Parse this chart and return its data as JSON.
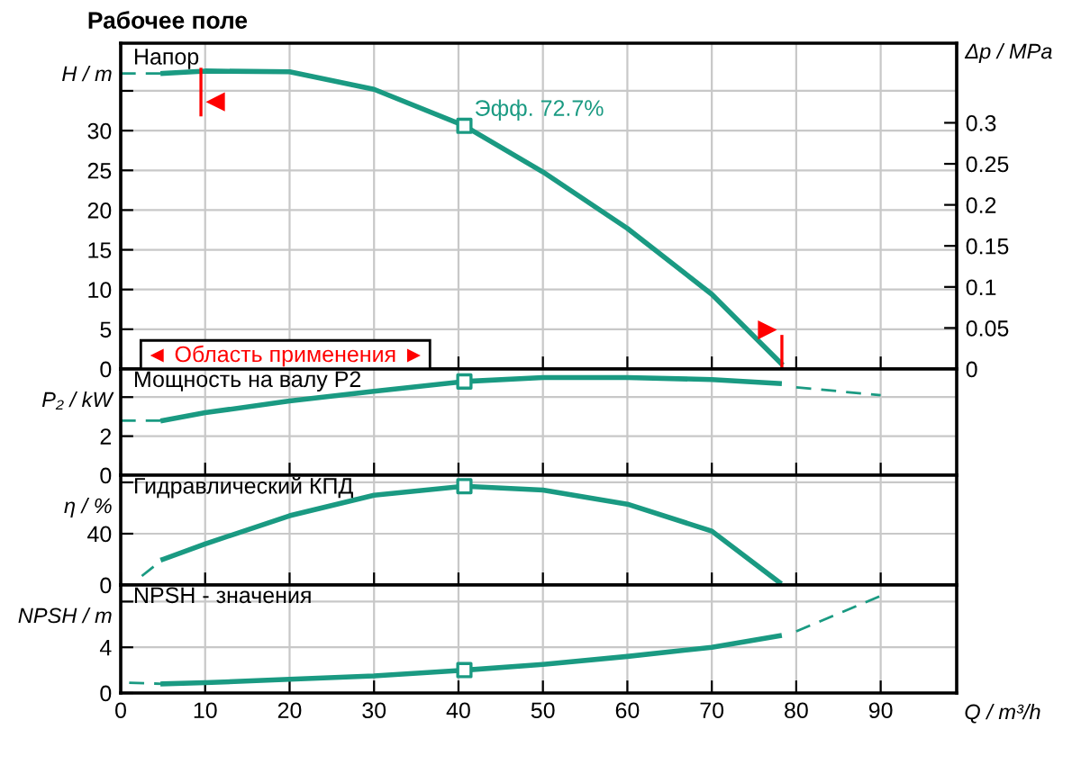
{
  "chart_data": [
    {
      "type": "line",
      "title": "Рабочее поле",
      "ylabel": "H / m",
      "y2label": "Δp / MPa",
      "xlim": [
        0,
        99
      ],
      "ylim": [
        0,
        41
      ],
      "yticks": [
        0,
        5,
        10,
        15,
        20,
        25,
        30,
        {
          "value": 35,
          "label": null
        }
      ],
      "y2lim": [
        0,
        0.397
      ],
      "y2ticks": [
        0,
        0.05,
        0.1,
        0.15,
        0.2,
        0.25,
        0.3
      ],
      "xticks": [
        0,
        10,
        20,
        30,
        40,
        50,
        60,
        70,
        80,
        90
      ],
      "tick_labels": "y",
      "grid": true,
      "annotations": [
        "Напор",
        {
          "text": "Эфф. 72.7%",
          "x": 40.7,
          "y": 30.6
        },
        "◄ Область применения ►"
      ],
      "ref_lines": [
        {
          "axis": "x",
          "value": 9.5,
          "color": "#ff0000"
        },
        {
          "axis": "x",
          "value": 78.3,
          "color": "#ff0000"
        }
      ],
      "series": [
        {
          "color": "#1a9a82",
          "line_style": "dashed",
          "x": [
            0,
            5
          ],
          "values": [
            37.2,
            37.2
          ]
        },
        {
          "color": "#1a9a82",
          "line_style": "solid",
          "x": [
            5,
            10,
            20,
            30,
            40.7,
            50,
            60,
            70,
            78.2
          ],
          "values": [
            37.2,
            37.5,
            37.4,
            35.2,
            30.6,
            24.8,
            17.7,
            9.4,
            0.7
          ]
        },
        {
          "type": "scatter",
          "color": "#1a9a82",
          "marker": "square",
          "x": [
            40.7
          ],
          "values": [
            30.6
          ]
        }
      ]
    },
    {
      "type": "line",
      "ylabel": "P₂ / kW",
      "xlim": [
        0,
        99
      ],
      "ylim": [
        0,
        5.44
      ],
      "yticks": [
        0,
        2,
        {
          "value": 4,
          "label": null
        }
      ],
      "xticks": [
        0,
        10,
        20,
        30,
        40,
        50,
        60,
        70,
        80,
        90
      ],
      "tick_labels": "y",
      "grid": true,
      "annotations": [
        "Мощность на валу P2"
      ],
      "series": [
        {
          "color": "#1a9a82",
          "line_style": "dashed",
          "x": [
            0,
            5
          ],
          "values": [
            2.8,
            2.8
          ]
        },
        {
          "color": "#1a9a82",
          "line_style": "solid",
          "x": [
            5,
            10,
            20,
            30,
            40.7,
            50,
            60,
            70,
            78
          ],
          "values": [
            2.8,
            3.2,
            3.8,
            4.3,
            4.8,
            5.0,
            5.0,
            4.9,
            4.7
          ]
        },
        {
          "color": "#1a9a82",
          "line_style": "dashed",
          "x": [
            80,
            90
          ],
          "values": [
            4.5,
            4.1
          ]
        },
        {
          "type": "scatter",
          "color": "#1a9a82",
          "marker": "square",
          "x": [
            40.7
          ],
          "values": [
            4.8
          ]
        }
      ]
    },
    {
      "type": "line",
      "ylabel": "η / %",
      "xlim": [
        0,
        99
      ],
      "ylim": [
        0,
        85.6
      ],
      "yticks": [
        0,
        40,
        {
          "value": 80,
          "label": null
        }
      ],
      "xticks": [
        0,
        10,
        20,
        30,
        40,
        50,
        60,
        70,
        80,
        90
      ],
      "tick_labels": "y",
      "grid": true,
      "annotations": [
        "Гидравлический КПД"
      ],
      "series": [
        {
          "color": "#1a9a82",
          "line_style": "dashed",
          "x": [
            2.5,
            5
          ],
          "values": [
            7,
            20
          ]
        },
        {
          "color": "#1a9a82",
          "line_style": "solid",
          "x": [
            5,
            10,
            20,
            30,
            40.7,
            50,
            60,
            70,
            78
          ],
          "values": [
            20,
            32,
            54,
            70,
            77,
            74,
            63,
            42,
            2
          ]
        },
        {
          "type": "scatter",
          "color": "#1a9a82",
          "marker": "square",
          "x": [
            40.7
          ],
          "values": [
            77
          ]
        }
      ]
    },
    {
      "type": "line",
      "ylabel": "NPSH / m",
      "xlabel": "Q / m³/h",
      "xlim": [
        0,
        99
      ],
      "ylim": [
        0,
        9.45
      ],
      "yticks": [
        0,
        4,
        {
          "value": 8,
          "label": null
        }
      ],
      "xticks": [
        0,
        10,
        20,
        30,
        40,
        50,
        60,
        70,
        80,
        90
      ],
      "grid": true,
      "annotations": [
        "NPSH - значения"
      ],
      "series": [
        {
          "color": "#1a9a82",
          "line_style": "dashed",
          "x": [
            1,
            5
          ],
          "values": [
            0.9,
            0.8
          ]
        },
        {
          "color": "#1a9a82",
          "line_style": "solid",
          "x": [
            5,
            10,
            20,
            30,
            40.7,
            50,
            60,
            70,
            78
          ],
          "values": [
            0.8,
            0.9,
            1.2,
            1.5,
            2.0,
            2.5,
            3.2,
            4.0,
            5.0
          ]
        },
        {
          "color": "#1a9a82",
          "line_style": "dashed",
          "x": [
            80,
            90
          ],
          "values": [
            5.4,
            8.5
          ]
        },
        {
          "type": "scatter",
          "color": "#1a9a82",
          "marker": "square",
          "x": [
            40.7
          ],
          "values": [
            2.0
          ]
        }
      ]
    }
  ]
}
